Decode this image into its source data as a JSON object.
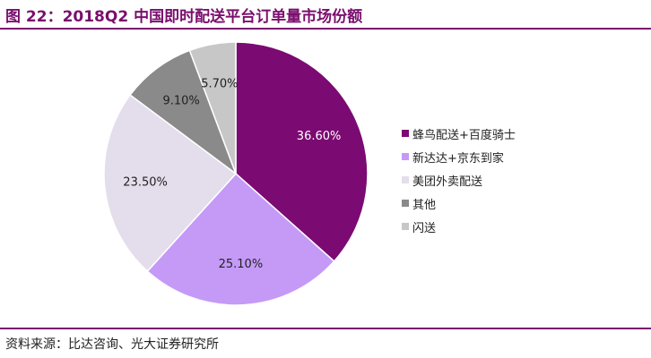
{
  "title": "图 22：2018Q2 中国即时配送平台订单量市场份额",
  "source": "资料来源：比达咨询、光大证券研究所",
  "chart_data": {
    "type": "pie",
    "categories": [
      "蜂鸟配送+百度骑士",
      "新达达+京东到家",
      "美团外卖配送",
      "其他",
      "闪送"
    ],
    "values": [
      36.6,
      25.1,
      23.5,
      9.1,
      5.7
    ],
    "labels": [
      "36.60%",
      "25.10%",
      "23.50%",
      "9.10%",
      "5.70%"
    ],
    "colors": [
      "#7b0a72",
      "#c59af7",
      "#e4ddeb",
      "#8a8a8a",
      "#c7c7c7"
    ],
    "label_colors": [
      "#ffffff",
      "#222222",
      "#222222",
      "#222222",
      "#222222"
    ],
    "start_angle": "12 o'clock",
    "direction": "clockwise",
    "legend_position": "right"
  }
}
